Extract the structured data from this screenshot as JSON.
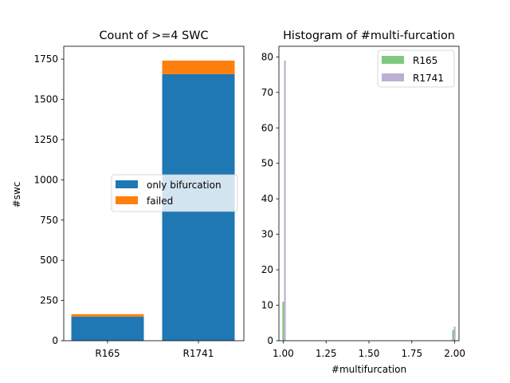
{
  "figure": {
    "background": "#ffffff"
  },
  "chart_data": [
    {
      "type": "bar",
      "stacked": true,
      "title": "Count of >=4 SWC",
      "xlabel": "",
      "ylabel": "#swc",
      "categories": [
        "R165",
        "R1741"
      ],
      "series": [
        {
          "name": "only bifurcation",
          "color": "#1f77b4",
          "values": [
            150,
            1657
          ]
        },
        {
          "name": "failed",
          "color": "#ff7f0e",
          "values": [
            15,
            84
          ]
        }
      ],
      "ylim": [
        0,
        1830
      ],
      "yticks": [
        "0",
        "250",
        "500",
        "750",
        "1000",
        "1250",
        "1500",
        "1750"
      ],
      "legend": "center-right",
      "grid": false
    },
    {
      "type": "bar",
      "subtype": "histogram",
      "title": "Histogram of #multi-furcation",
      "xlabel": "#multifurcation",
      "ylabel": "",
      "xlim": [
        0.975,
        2.025
      ],
      "ylim": [
        0,
        83
      ],
      "xticks": [
        "1.00",
        "1.25",
        "1.50",
        "1.75",
        "2.00"
      ],
      "yticks": [
        "0",
        "10",
        "20",
        "30",
        "40",
        "50",
        "60",
        "70",
        "80"
      ],
      "bar_width": 0.01,
      "series": [
        {
          "name": "R165",
          "color": "#7fc97f",
          "x": [
            1.0,
            1.99
          ],
          "values": [
            11,
            3
          ]
        },
        {
          "name": "R1741",
          "color": "#beaed4",
          "x": [
            1.01,
            2.0
          ],
          "values": [
            79,
            4
          ]
        }
      ],
      "legend": "top-right",
      "grid": false
    }
  ]
}
